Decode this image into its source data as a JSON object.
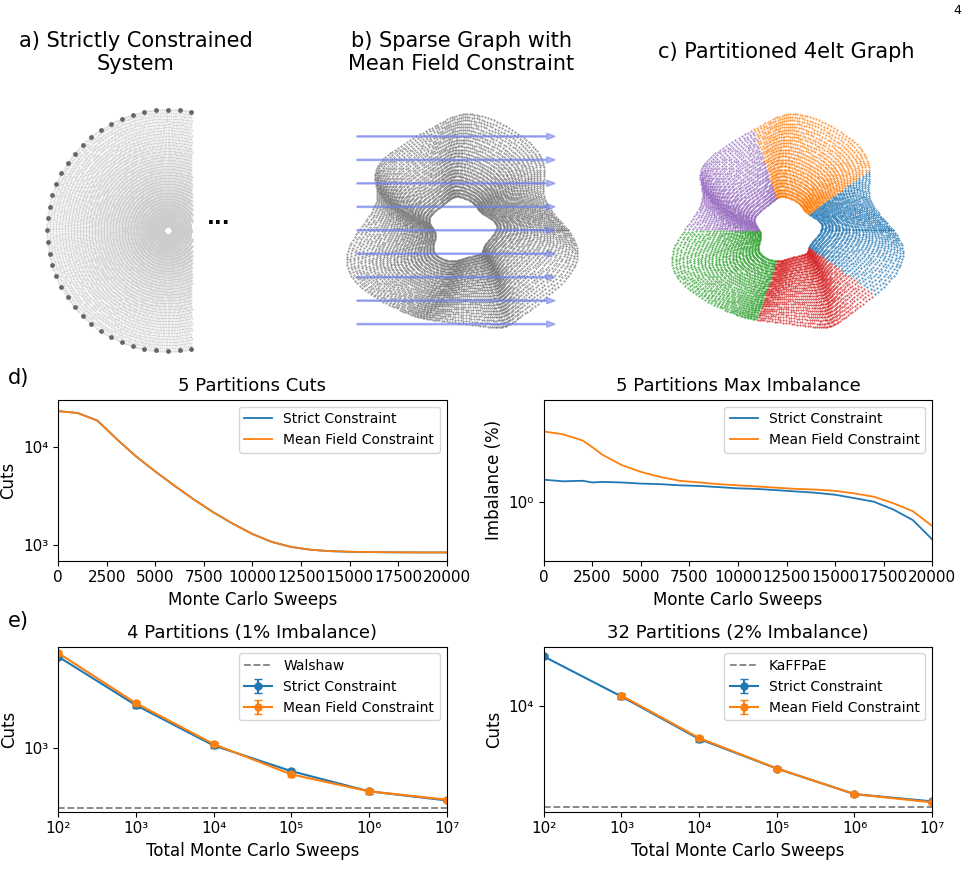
{
  "page_number": "4",
  "diagrams": [
    {
      "title_lines": [
        "a) Strictly Constrained",
        "System"
      ],
      "ellipsis": "..."
    },
    {
      "title_lines": [
        "b) Sparse Graph with",
        "Mean Field Constraint"
      ]
    },
    {
      "title_lines": [
        "c) Partitioned 4elt Graph"
      ]
    }
  ],
  "panel_labels": [
    "d)",
    "e)"
  ],
  "chart_data": [
    {
      "type": "line",
      "title": "5 Partitions Cuts",
      "x_label": "Monte Carlo Sweeps",
      "y_label": "Cuts",
      "log": "y",
      "legend": "upper right",
      "grid": false,
      "xlim": [
        0,
        20000
      ],
      "xticks": [
        0,
        2500,
        5000,
        7500,
        10000,
        12500,
        15000,
        17500,
        20000
      ],
      "ylim": [
        700,
        30000
      ],
      "yticks": [
        {
          "value": 1000,
          "label": "10³"
        },
        {
          "value": 10000,
          "label": "10⁴"
        }
      ],
      "x": [
        0,
        1000,
        2000,
        2500,
        3000,
        4000,
        5000,
        6000,
        7000,
        8000,
        9000,
        10000,
        11000,
        12000,
        13000,
        14000,
        15000,
        16000,
        17000,
        18000,
        19000,
        20000
      ],
      "series": [
        {
          "name": "Strict Constraint",
          "color": "#1f77b4",
          "line_style": "solid",
          "values": [
            23000,
            22000,
            18500,
            15000,
            12000,
            8000,
            5600,
            4000,
            2900,
            2150,
            1650,
            1300,
            1080,
            960,
            900,
            870,
            858,
            852,
            848,
            846,
            845,
            845
          ]
        },
        {
          "name": "Mean Field Constraint",
          "color": "#ff7f0e",
          "line_style": "solid",
          "values": [
            23000,
            22000,
            18400,
            15000,
            12000,
            8000,
            5600,
            4000,
            2900,
            2150,
            1650,
            1300,
            1080,
            960,
            900,
            872,
            860,
            853,
            849,
            847,
            846,
            846
          ]
        }
      ]
    },
    {
      "type": "line",
      "title": "5 Partitions Max Imbalance",
      "x_label": "Monte Carlo Sweeps",
      "y_label": "Imbalance (%)",
      "log": "y",
      "legend": "upper right",
      "grid": false,
      "xlim": [
        0,
        20000
      ],
      "xticks": [
        0,
        2500,
        5000,
        7500,
        10000,
        12500,
        15000,
        17500,
        20000
      ],
      "ylim": [
        0.45,
        4
      ],
      "yticks": [
        {
          "value": 1,
          "label": "10⁰"
        }
      ],
      "x": [
        0,
        1000,
        2000,
        2500,
        3000,
        4000,
        5000,
        6000,
        7000,
        8000,
        9000,
        10000,
        11000,
        12000,
        13000,
        14000,
        15000,
        16000,
        17000,
        18000,
        19000,
        20000
      ],
      "series": [
        {
          "name": "Strict Constraint",
          "color": "#1f77b4",
          "line_style": "solid",
          "values": [
            1.35,
            1.32,
            1.33,
            1.3,
            1.31,
            1.3,
            1.28,
            1.27,
            1.25,
            1.24,
            1.22,
            1.2,
            1.19,
            1.17,
            1.15,
            1.13,
            1.1,
            1.05,
            1.0,
            0.9,
            0.78,
            0.6
          ]
        },
        {
          "name": "Mean Field Constraint",
          "color": "#ff7f0e",
          "line_style": "solid",
          "values": [
            2.6,
            2.5,
            2.3,
            2.1,
            1.9,
            1.65,
            1.5,
            1.4,
            1.33,
            1.3,
            1.27,
            1.25,
            1.23,
            1.21,
            1.19,
            1.18,
            1.16,
            1.12,
            1.07,
            0.98,
            0.88,
            0.72
          ]
        }
      ]
    },
    {
      "type": "line",
      "title": "4 Partitions (1% Imbalance)",
      "x_label": "Total Monte Carlo Sweeps",
      "y_label": "Cuts",
      "log": true,
      "legend": "upper right",
      "grid": false,
      "xlim": [
        100,
        10000000
      ],
      "xticks": [
        {
          "value": 100,
          "label": "10²"
        },
        {
          "value": 1000,
          "label": "10³"
        },
        {
          "value": 10000,
          "label": "10⁴"
        },
        {
          "value": 100000,
          "label": "10⁵"
        },
        {
          "value": 1000000,
          "label": "10⁶"
        },
        {
          "value": 10000000,
          "label": "10⁷"
        }
      ],
      "ylim": [
        270,
        8000
      ],
      "yticks": [
        {
          "value": 1000,
          "label": "10³"
        }
      ],
      "series": [
        {
          "name": "Walshaw",
          "color": "#808080",
          "line_style": "dashed",
          "x": [
            100,
            10000000
          ],
          "values": [
            290,
            290
          ]
        },
        {
          "name": "Strict Constraint",
          "color": "#1f77b4",
          "line_style": "solid",
          "marker": "o",
          "x": [
            100,
            1000,
            10000,
            100000,
            1000000,
            10000000
          ],
          "values": [
            6500,
            2400,
            1050,
            620,
            410,
            340
          ],
          "errors": [
            300,
            120,
            50,
            30,
            20,
            12
          ]
        },
        {
          "name": "Mean Field Constraint",
          "color": "#ff7f0e",
          "line_style": "solid",
          "marker": "o",
          "x": [
            100,
            1000,
            10000,
            100000,
            1000000,
            10000000
          ],
          "values": [
            7000,
            2500,
            1080,
            580,
            410,
            345
          ],
          "errors": [
            300,
            120,
            50,
            30,
            20,
            12
          ]
        }
      ]
    },
    {
      "type": "line",
      "title": "32 Partitions (2% Imbalance)",
      "x_label": "Total Monte Carlo Sweeps",
      "y_label": "Cuts",
      "log": true,
      "legend": "upper right",
      "grid": false,
      "xlim": [
        100,
        10000000
      ],
      "xticks": [
        {
          "value": 100,
          "label": "10²"
        },
        {
          "value": 1000,
          "label": "10³"
        },
        {
          "value": 10000,
          "label": "10⁴"
        },
        {
          "value": 100000,
          "label": "10⁵"
        },
        {
          "value": 1000000,
          "label": "10⁶"
        },
        {
          "value": 10000000,
          "label": "10⁷"
        }
      ],
      "ylim": [
        1450,
        30000
      ],
      "yticks": [
        {
          "value": 10000,
          "label": "10⁴"
        }
      ],
      "series": [
        {
          "name": "KaFFPaE",
          "color": "#808080",
          "line_style": "dashed",
          "x": [
            100,
            10000000
          ],
          "values": [
            1580,
            1580
          ]
        },
        {
          "name": "Strict Constraint",
          "color": "#1f77b4",
          "line_style": "solid",
          "marker": "o",
          "x": [
            100,
            1000,
            10000,
            100000,
            1000000,
            10000000
          ],
          "values": [
            25000,
            12000,
            5500,
            3200,
            2000,
            1750
          ],
          "errors": [
            800,
            500,
            250,
            100,
            60,
            40
          ]
        },
        {
          "name": "Mean Field Constraint",
          "color": "#ff7f0e",
          "line_style": "solid",
          "marker": "o",
          "x": [
            100,
            1000,
            10000,
            100000,
            1000000,
            10000000
          ],
          "values": [
            null,
            12200,
            5600,
            3200,
            2000,
            1720
          ],
          "errors": [
            null,
            500,
            250,
            100,
            60,
            40
          ]
        }
      ]
    }
  ]
}
